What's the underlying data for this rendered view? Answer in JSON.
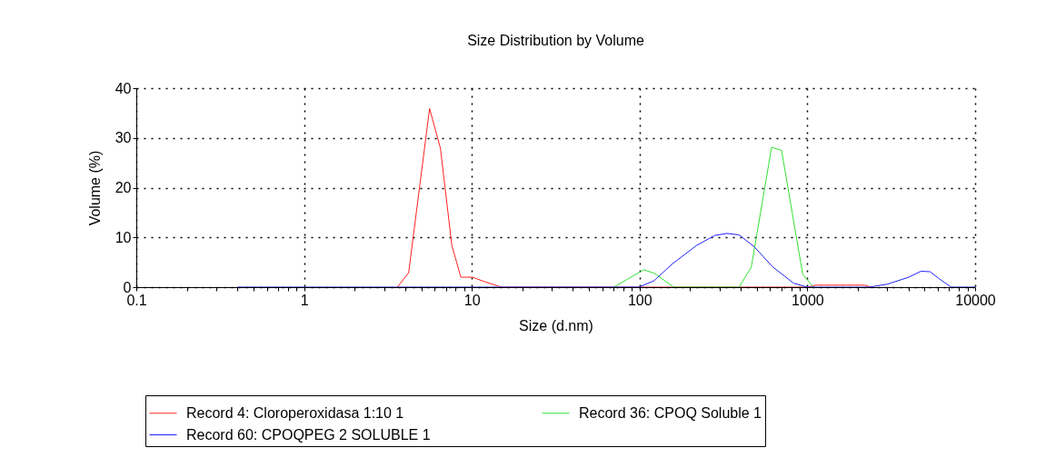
{
  "chart_data": {
    "type": "line",
    "title": "Size Distribution by Volume",
    "xlabel": "Size (d.nm)",
    "ylabel": "Volume (%)",
    "log": "x",
    "grid": true,
    "legend": "bottom",
    "marker": "none",
    "line_style": "solid",
    "xlim": [
      0.1,
      10000
    ],
    "ylim": [
      0,
      40
    ],
    "yticks": [
      0,
      10,
      20,
      30,
      40
    ],
    "xticks": [
      0.1,
      {
        "value": 0.2,
        "label": null
      },
      {
        "value": 0.3,
        "label": null
      },
      {
        "value": 0.4,
        "label": null
      },
      {
        "value": 0.5,
        "label": null
      },
      {
        "value": 0.6,
        "label": null
      },
      {
        "value": 0.7,
        "label": null
      },
      {
        "value": 0.8,
        "label": null
      },
      {
        "value": 0.9,
        "label": null
      },
      1,
      {
        "value": 2,
        "label": null
      },
      {
        "value": 3,
        "label": null
      },
      {
        "value": 4,
        "label": null
      },
      {
        "value": 5,
        "label": null
      },
      {
        "value": 6,
        "label": null
      },
      {
        "value": 7,
        "label": null
      },
      {
        "value": 8,
        "label": null
      },
      {
        "value": 9,
        "label": null
      },
      10,
      {
        "value": 20,
        "label": null
      },
      {
        "value": 30,
        "label": null
      },
      {
        "value": 40,
        "label": null
      },
      {
        "value": 50,
        "label": null
      },
      {
        "value": 60,
        "label": null
      },
      {
        "value": 70,
        "label": null
      },
      {
        "value": 80,
        "label": null
      },
      {
        "value": 90,
        "label": null
      },
      100,
      {
        "value": 200,
        "label": null
      },
      {
        "value": 300,
        "label": null
      },
      {
        "value": 400,
        "label": null
      },
      {
        "value": 500,
        "label": null
      },
      {
        "value": 600,
        "label": null
      },
      {
        "value": 700,
        "label": null
      },
      {
        "value": 800,
        "label": null
      },
      {
        "value": 900,
        "label": null
      },
      1000,
      {
        "value": 2000,
        "label": null
      },
      {
        "value": 3000,
        "label": null
      },
      {
        "value": 4000,
        "label": null
      },
      {
        "value": 5000,
        "label": null
      },
      {
        "value": 6000,
        "label": null
      },
      {
        "value": 7000,
        "label": null
      },
      {
        "value": 8000,
        "label": null
      },
      {
        "value": 9000,
        "label": null
      },
      10000
    ],
    "series": [
      {
        "name": "Record 4: Cloroperoxidasa 1:10 1",
        "color": "#ff2020",
        "x": [
          3.6,
          4.2,
          5.6,
          6.5,
          7.6,
          8.6,
          10.1,
          11.9,
          15,
          1000,
          1120,
          2200,
          2400
        ],
        "values": [
          0,
          2.9,
          35.9,
          27.9,
          8.4,
          2.0,
          2.0,
          1.1,
          0,
          0,
          0.4,
          0.4,
          0
        ]
      },
      {
        "name": "Record 36: CPOQ Soluble 1",
        "color": "#33e033",
        "x": [
          70,
          106,
          122,
          160,
          392,
          463,
          612,
          702,
          938,
          1086
        ],
        "values": [
          0,
          3.5,
          2.8,
          0,
          0,
          4.0,
          28.1,
          27.5,
          2.6,
          0
        ]
      },
      {
        "name": "Record 60: CPOQPEG 2 SOLUBLE 1",
        "color": "#2020ff",
        "x": [
          0.4,
          99,
          122,
          157,
          219,
          281,
          332,
          392,
          483,
          620,
          828,
          1000,
          2340,
          3000,
          4020,
          4750,
          5390,
          6100,
          7200,
          10000
        ],
        "values": [
          0,
          0,
          1.3,
          4.7,
          8.4,
          10.4,
          10.8,
          10.5,
          8.1,
          4.1,
          0.8,
          0,
          0,
          0.6,
          2.0,
          3.2,
          3.1,
          1.7,
          0,
          0
        ]
      }
    ]
  }
}
